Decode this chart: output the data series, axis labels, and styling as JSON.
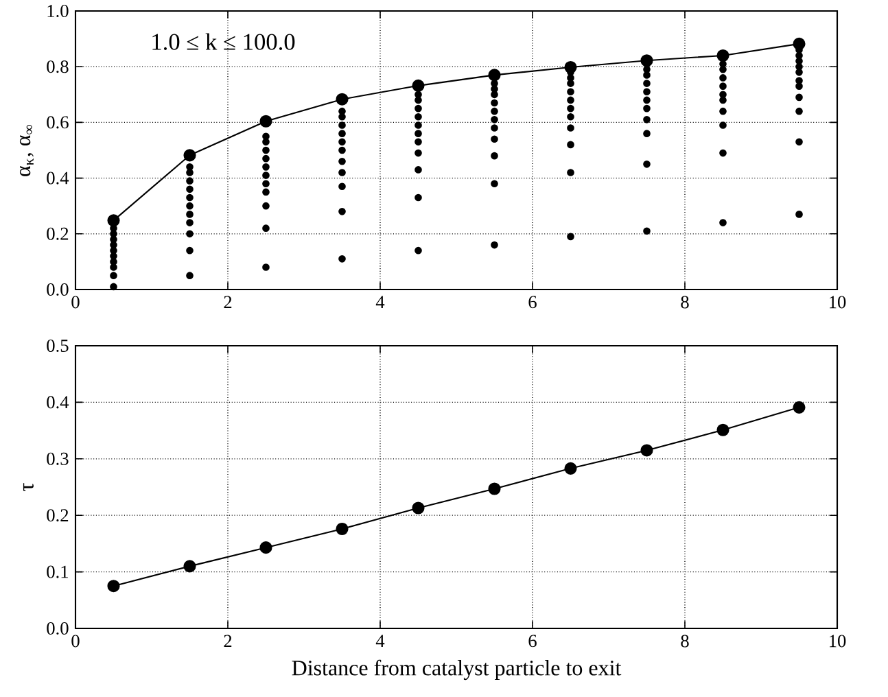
{
  "chart_data": [
    {
      "type": "line",
      "ylabel": "α$_{κ}$, α$_{∞}$",
      "annotations": [
        "1.0 ≤ k ≤ 100.0"
      ],
      "x": [
        0.5,
        1.5,
        2.5,
        3.5,
        4.5,
        5.5,
        6.5,
        7.5,
        8.5,
        9.5
      ],
      "xlim": [
        0,
        10
      ],
      "ylim": [
        0,
        1
      ],
      "xticks": [
        0,
        2,
        4,
        6,
        8,
        10
      ],
      "yticks": [
        {
          "value": 0,
          "label": "0.0"
        },
        {
          "value": 0.2,
          "label": "0.2"
        },
        {
          "value": 0.4,
          "label": "0.4"
        },
        {
          "value": 0.6,
          "label": "0.6"
        },
        {
          "value": 0.8,
          "label": "0.8"
        },
        {
          "value": 1,
          "label": "1.0"
        }
      ],
      "grid": true,
      "marker": "circle",
      "series": [
        {
          "color": "#000000",
          "values": [
            0.248,
            0.482,
            0.604,
            0.683,
            0.732,
            0.77,
            0.798,
            0.822,
            0.84,
            0.882
          ]
        },
        {
          "type": "scatter",
          "color": "#000000",
          "x": [
            0.5,
            0.5,
            0.5,
            0.5,
            0.5,
            0.5,
            0.5,
            0.5,
            0.5,
            0.5,
            1.5,
            1.5,
            1.5,
            1.5,
            1.5,
            1.5,
            1.5,
            1.5,
            1.5,
            1.5,
            1.5,
            2.5,
            2.5,
            2.5,
            2.5,
            2.5,
            2.5,
            2.5,
            2.5,
            2.5,
            2.5,
            2.5,
            3.5,
            3.5,
            3.5,
            3.5,
            3.5,
            3.5,
            3.5,
            3.5,
            3.5,
            3.5,
            3.5,
            4.5,
            4.5,
            4.5,
            4.5,
            4.5,
            4.5,
            4.5,
            4.5,
            4.5,
            4.5,
            4.5,
            5.5,
            5.5,
            5.5,
            5.5,
            5.5,
            5.5,
            5.5,
            5.5,
            5.5,
            5.5,
            5.5,
            6.5,
            6.5,
            6.5,
            6.5,
            6.5,
            6.5,
            6.5,
            6.5,
            6.5,
            6.5,
            6.5,
            7.5,
            7.5,
            7.5,
            7.5,
            7.5,
            7.5,
            7.5,
            7.5,
            7.5,
            7.5,
            7.5,
            8.5,
            8.5,
            8.5,
            8.5,
            8.5,
            8.5,
            8.5,
            8.5,
            8.5,
            8.5,
            9.5,
            9.5,
            9.5,
            9.5,
            9.5,
            9.5,
            9.5,
            9.5,
            9.5,
            9.5,
            9.5
          ],
          "values": [
            0.01,
            0.05,
            0.08,
            0.1,
            0.12,
            0.14,
            0.16,
            0.18,
            0.2,
            0.22,
            0.05,
            0.14,
            0.2,
            0.24,
            0.27,
            0.3,
            0.33,
            0.36,
            0.39,
            0.42,
            0.44,
            0.08,
            0.22,
            0.3,
            0.35,
            0.38,
            0.41,
            0.44,
            0.47,
            0.5,
            0.53,
            0.55,
            0.11,
            0.28,
            0.37,
            0.42,
            0.46,
            0.5,
            0.53,
            0.56,
            0.59,
            0.62,
            0.64,
            0.14,
            0.33,
            0.43,
            0.49,
            0.53,
            0.56,
            0.59,
            0.62,
            0.65,
            0.68,
            0.7,
            0.16,
            0.38,
            0.48,
            0.54,
            0.58,
            0.61,
            0.64,
            0.67,
            0.7,
            0.72,
            0.74,
            0.19,
            0.42,
            0.52,
            0.58,
            0.62,
            0.65,
            0.68,
            0.71,
            0.74,
            0.76,
            0.78,
            0.21,
            0.45,
            0.56,
            0.61,
            0.65,
            0.68,
            0.71,
            0.74,
            0.77,
            0.79,
            0.81,
            0.24,
            0.49,
            0.59,
            0.64,
            0.68,
            0.7,
            0.73,
            0.76,
            0.79,
            0.81,
            0.27,
            0.53,
            0.64,
            0.69,
            0.73,
            0.75,
            0.78,
            0.8,
            0.82,
            0.84,
            0.86
          ]
        }
      ]
    },
    {
      "type": "line",
      "xlabel": "Distance from catalyst particle to exit",
      "ylabel": "τ",
      "x": [
        0.5,
        1.5,
        2.5,
        3.5,
        4.5,
        5.5,
        6.5,
        7.5,
        8.5,
        9.5
      ],
      "xlim": [
        0,
        10
      ],
      "ylim": [
        0,
        0.5
      ],
      "xticks": [
        0,
        2,
        4,
        6,
        8,
        10
      ],
      "yticks": [
        {
          "value": 0,
          "label": "0.0"
        },
        {
          "value": 0.1,
          "label": "0.1"
        },
        {
          "value": 0.2,
          "label": "0.2"
        },
        {
          "value": 0.3,
          "label": "0.3"
        },
        {
          "value": 0.4,
          "label": "0.4"
        },
        {
          "value": 0.5,
          "label": "0.5"
        }
      ],
      "grid": true,
      "marker": "circle",
      "series": [
        {
          "color": "#000000",
          "values": [
            0.075,
            0.11,
            0.143,
            0.176,
            0.213,
            0.247,
            0.283,
            0.315,
            0.351,
            0.391
          ]
        }
      ]
    }
  ]
}
